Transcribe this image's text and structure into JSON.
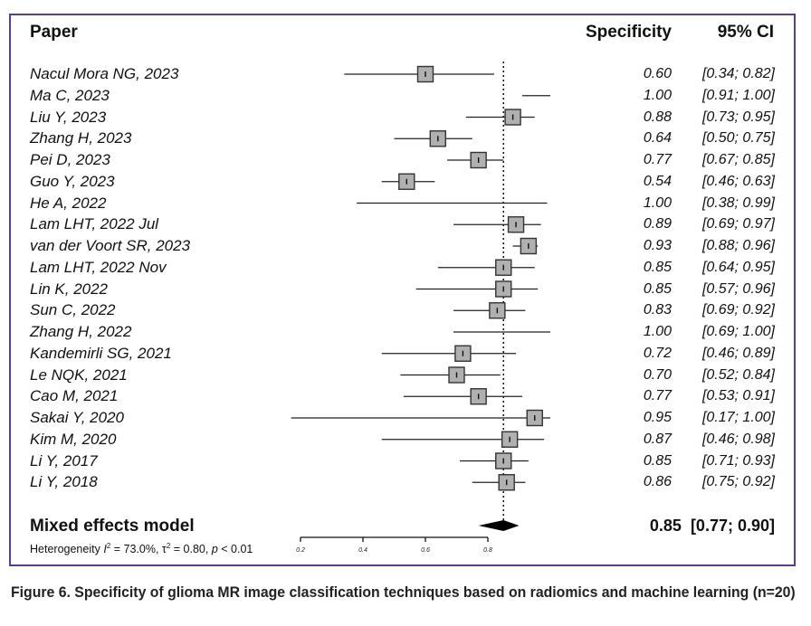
{
  "headers": {
    "paper": "Paper",
    "specificity": "Specificity",
    "ci": "95% CI"
  },
  "chart_data": {
    "type": "forest",
    "title": "",
    "xlabel": "",
    "xlim": [
      0.2,
      1.0
    ],
    "xticks": [
      0.2,
      0.4,
      0.6,
      0.8
    ],
    "xtick_labels": [
      "0.2",
      "0.4",
      "0.6",
      "0.8"
    ],
    "reference_line": 0.85,
    "studies": [
      {
        "paper": "Nacul Mora NG, 2023",
        "est": 0.6,
        "lo": 0.34,
        "hi": 0.82,
        "est_label": "0.60",
        "ci_label": "[0.34; 0.82]"
      },
      {
        "paper": "Ma C, 2023",
        "est": 1.0,
        "lo": 0.91,
        "hi": 1.0,
        "est_label": "1.00",
        "ci_label": "[0.91; 1.00]"
      },
      {
        "paper": "Liu Y, 2023",
        "est": 0.88,
        "lo": 0.73,
        "hi": 0.95,
        "est_label": "0.88",
        "ci_label": "[0.73; 0.95]"
      },
      {
        "paper": "Zhang H, 2023",
        "est": 0.64,
        "lo": 0.5,
        "hi": 0.75,
        "est_label": "0.64",
        "ci_label": "[0.50; 0.75]"
      },
      {
        "paper": "Pei D, 2023",
        "est": 0.77,
        "lo": 0.67,
        "hi": 0.85,
        "est_label": "0.77",
        "ci_label": "[0.67; 0.85]"
      },
      {
        "paper": "Guo Y, 2023",
        "est": 0.54,
        "lo": 0.46,
        "hi": 0.63,
        "est_label": "0.54",
        "ci_label": "[0.46; 0.63]"
      },
      {
        "paper": "He A, 2022",
        "est": 1.0,
        "lo": 0.38,
        "hi": 0.99,
        "est_label": "1.00",
        "ci_label": "[0.38; 0.99]"
      },
      {
        "paper": "Lam LHT, 2022 Jul",
        "est": 0.89,
        "lo": 0.69,
        "hi": 0.97,
        "est_label": "0.89",
        "ci_label": "[0.69; 0.97]"
      },
      {
        "paper": "van der Voort SR, 2023",
        "est": 0.93,
        "lo": 0.88,
        "hi": 0.96,
        "est_label": "0.93",
        "ci_label": "[0.88; 0.96]"
      },
      {
        "paper": "Lam LHT, 2022 Nov",
        "est": 0.85,
        "lo": 0.64,
        "hi": 0.95,
        "est_label": "0.85",
        "ci_label": "[0.64; 0.95]"
      },
      {
        "paper": "Lin K, 2022",
        "est": 0.85,
        "lo": 0.57,
        "hi": 0.96,
        "est_label": "0.85",
        "ci_label": "[0.57; 0.96]"
      },
      {
        "paper": "Sun C, 2022",
        "est": 0.83,
        "lo": 0.69,
        "hi": 0.92,
        "est_label": "0.83",
        "ci_label": "[0.69; 0.92]"
      },
      {
        "paper": "Zhang H, 2022",
        "est": 1.0,
        "lo": 0.69,
        "hi": 1.0,
        "est_label": "1.00",
        "ci_label": "[0.69; 1.00]"
      },
      {
        "paper": "Kandemirli SG, 2021",
        "est": 0.72,
        "lo": 0.46,
        "hi": 0.89,
        "est_label": "0.72",
        "ci_label": "[0.46; 0.89]"
      },
      {
        "paper": "Le NQK, 2021",
        "est": 0.7,
        "lo": 0.52,
        "hi": 0.84,
        "est_label": "0.70",
        "ci_label": "[0.52; 0.84]"
      },
      {
        "paper": "Cao M, 2021",
        "est": 0.77,
        "lo": 0.53,
        "hi": 0.91,
        "est_label": "0.77",
        "ci_label": "[0.53; 0.91]"
      },
      {
        "paper": "Sakai Y, 2020",
        "est": 0.95,
        "lo": 0.17,
        "hi": 1.0,
        "est_label": "0.95",
        "ci_label": "[0.17; 1.00]"
      },
      {
        "paper": "Kim M, 2020",
        "est": 0.87,
        "lo": 0.46,
        "hi": 0.98,
        "est_label": "0.87",
        "ci_label": "[0.46; 0.98]"
      },
      {
        "paper": "Li Y, 2017",
        "est": 0.85,
        "lo": 0.71,
        "hi": 0.93,
        "est_label": "0.85",
        "ci_label": "[0.71; 0.93]"
      },
      {
        "paper": "Li Y, 2018",
        "est": 0.86,
        "lo": 0.75,
        "hi": 0.92,
        "est_label": "0.86",
        "ci_label": "[0.75; 0.92]"
      }
    ],
    "pooled": {
      "label": "Mixed effects model",
      "est": 0.85,
      "lo": 0.77,
      "hi": 0.9,
      "value_label": "0.85  [0.77; 0.90]"
    },
    "heterogeneity": {
      "prefix": "Heterogeneity ",
      "i2_sym": "I",
      "i2_text": " = 73.0%, ",
      "tau_sym": "τ",
      "tau_text": " = 0.80, ",
      "p_sym": "p",
      "p_text": " < 0.01"
    }
  },
  "caption": "Figure 6. Specificity of glioma MR image classification techniques based on radiomics and machine learning (n=20)",
  "colors": {
    "frame": "#5a3d8a",
    "box_fill": "#b0b0b0",
    "line": "#111111"
  }
}
